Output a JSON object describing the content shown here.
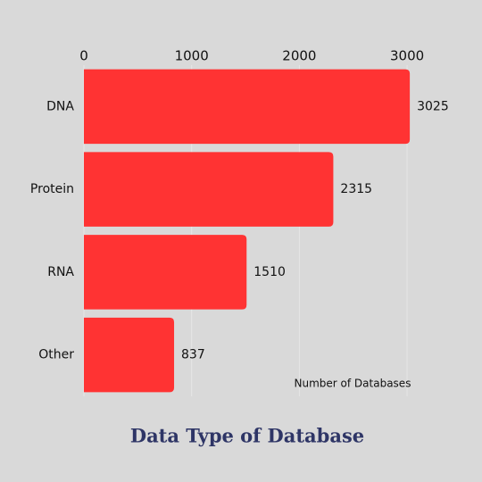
{
  "chart_data": {
    "type": "hbar",
    "title": "Data Type of Database",
    "x_label": "Number of Databases",
    "categories": [
      "DNA",
      "Protein",
      "RNA",
      "Other"
    ],
    "values": [
      3025,
      2315,
      1510,
      837
    ],
    "color": "#ff3333",
    "xlim": [
      0,
      3100
    ],
    "xticks": [
      0,
      1000,
      2000,
      3000
    ],
    "grid": true
  }
}
